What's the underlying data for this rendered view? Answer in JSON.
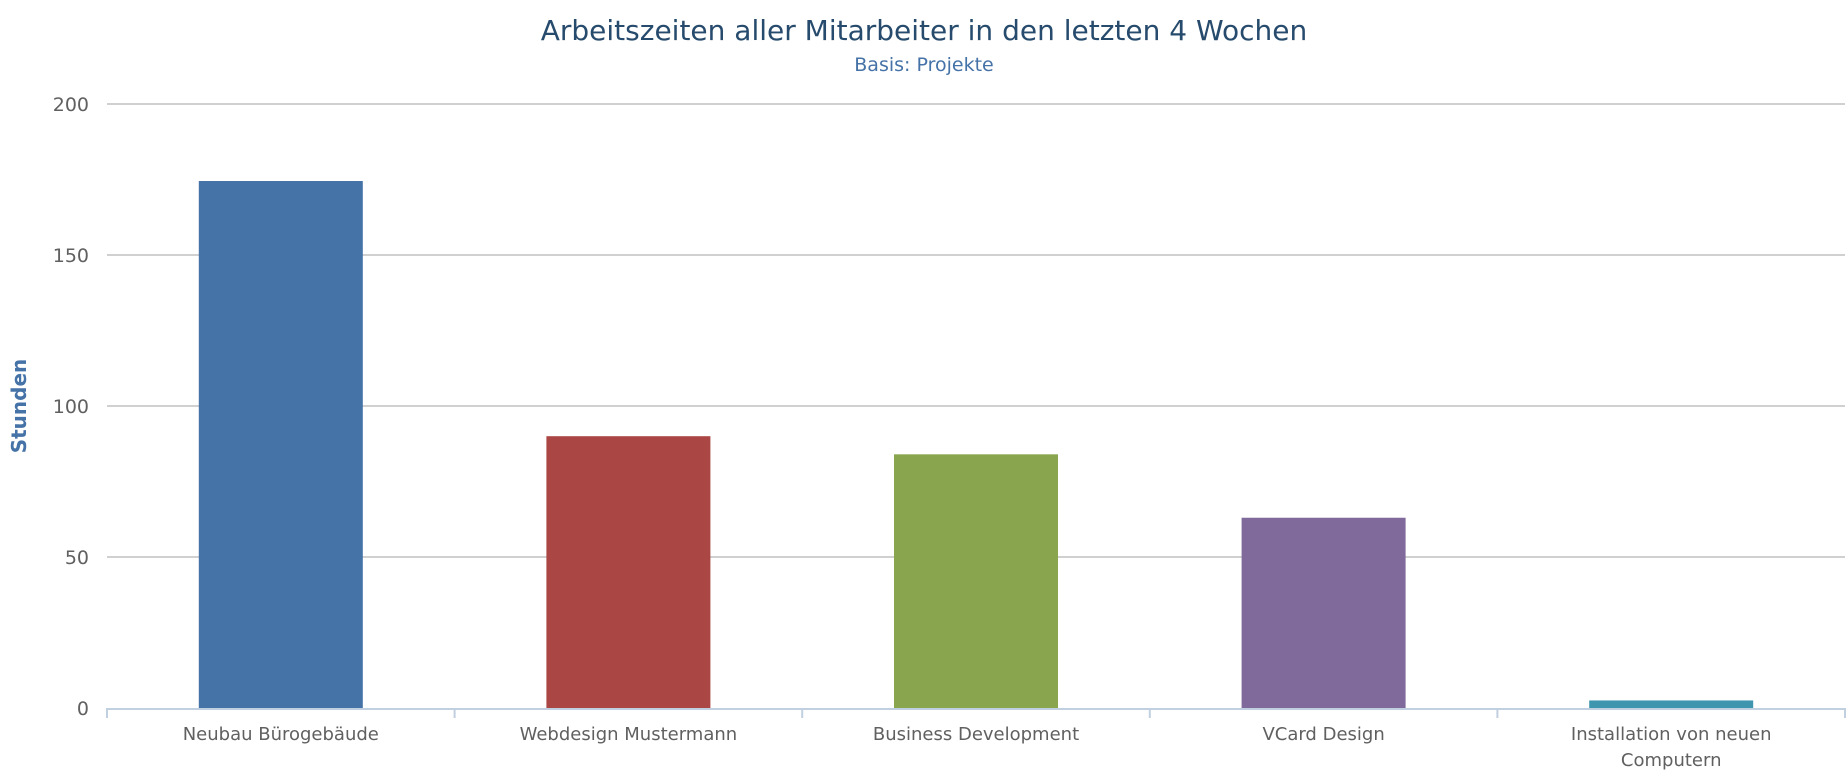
{
  "chart_data": {
    "type": "bar",
    "title": "Arbeitszeiten aller Mitarbeiter in den letzten 4 Wochen",
    "subtitle": "Basis: Projekte",
    "xlabel": "",
    "ylabel": "Stunden",
    "ylim": [
      0,
      200
    ],
    "yticks": [
      "0",
      "50",
      "100",
      "150",
      "200"
    ],
    "grid": true,
    "legend": "none",
    "categories": [
      [
        "Neubau Bürogebäude"
      ],
      [
        "Webdesign Mustermann"
      ],
      [
        "Business Development"
      ],
      [
        "VCard Design"
      ],
      [
        "Installation von neuen",
        "Computern"
      ]
    ],
    "values": [
      174.5,
      90,
      84,
      63,
      2.5
    ],
    "colors": [
      "#4572a7",
      "#aa4643",
      "#89a54e",
      "#80699b",
      "#3d96ae"
    ]
  }
}
